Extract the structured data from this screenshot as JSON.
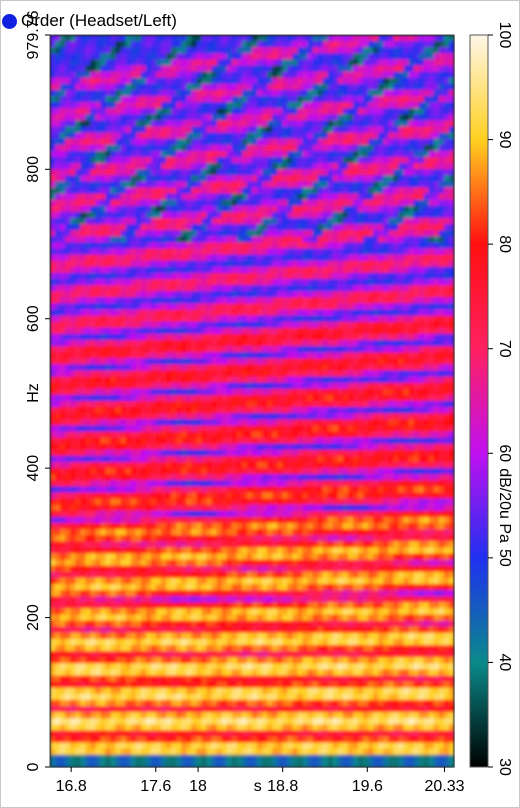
{
  "legend": {
    "series_name": "Order (Headset/Left)",
    "marker_color": "#1020e0"
  },
  "chart_data": {
    "type": "heatmap",
    "title": "Order (Headset/Left)",
    "xlabel": "s",
    "ylabel": "Hz",
    "colorbar_label": "dB/20u Pa",
    "xlim": [
      16.6,
      20.42
    ],
    "ylim": [
      0,
      979.76
    ],
    "zlim": [
      30,
      100
    ],
    "x_ticks": [
      {
        "value": 16.8,
        "label": "16.8"
      },
      {
        "value": 17.6,
        "label": "17.6"
      },
      {
        "value": 18.0,
        "label": "18"
      },
      {
        "value": 18.8,
        "label": "18.8"
      },
      {
        "value": 19.6,
        "label": "19.6"
      },
      {
        "value": 20.33,
        "label": "20.33"
      }
    ],
    "y_ticks": [
      {
        "value": 0,
        "label": "0"
      },
      {
        "value": 200,
        "label": "200"
      },
      {
        "value": 400,
        "label": "400"
      },
      {
        "value": 600,
        "label": "600"
      },
      {
        "value": 800,
        "label": "800"
      },
      {
        "value": 979.76,
        "label": "979.76"
      }
    ],
    "colorbar_ticks": [
      30,
      40,
      50,
      60,
      70,
      80,
      90,
      100
    ],
    "colormap": [
      "#000000",
      "#0a8a8a",
      "#2030f0",
      "#c010f0",
      "#ff2060",
      "#ff1010",
      "#ffd020",
      "#fff7e8"
    ],
    "bands": [
      {
        "f0": 25,
        "slope": 0,
        "level": 92
      },
      {
        "f0": 60,
        "slope": 2,
        "level": 94
      },
      {
        "f0": 95,
        "slope": 4,
        "level": 93
      },
      {
        "f0": 130,
        "slope": 6,
        "level": 93
      },
      {
        "f0": 165,
        "slope": 8,
        "level": 92
      },
      {
        "f0": 200,
        "slope": 10,
        "level": 90
      },
      {
        "f0": 240,
        "slope": 14,
        "level": 90
      },
      {
        "f0": 275,
        "slope": 18,
        "level": 89
      },
      {
        "f0": 310,
        "slope": 20,
        "level": 86
      },
      {
        "f0": 350,
        "slope": 24,
        "level": 82
      },
      {
        "f0": 390,
        "slope": 28,
        "level": 80
      },
      {
        "f0": 430,
        "slope": 32,
        "level": 80
      },
      {
        "f0": 470,
        "slope": 36,
        "level": 79
      },
      {
        "f0": 510,
        "slope": 40,
        "level": 78
      },
      {
        "f0": 550,
        "slope": 44,
        "level": 77
      },
      {
        "f0": 590,
        "slope": 48,
        "level": 72
      },
      {
        "f0": 630,
        "slope": 52,
        "level": 70
      },
      {
        "f0": 670,
        "slope": 56,
        "level": 70
      },
      {
        "f0": 710,
        "slope": 60,
        "level": 69
      },
      {
        "f0": 750,
        "slope": 64,
        "level": 69
      },
      {
        "f0": 790,
        "slope": 68,
        "level": 68
      },
      {
        "f0": 830,
        "slope": 72,
        "level": 67
      },
      {
        "f0": 870,
        "slope": 76,
        "level": 66
      },
      {
        "f0": 910,
        "slope": 80,
        "level": 66
      }
    ],
    "background_level": 52
  }
}
